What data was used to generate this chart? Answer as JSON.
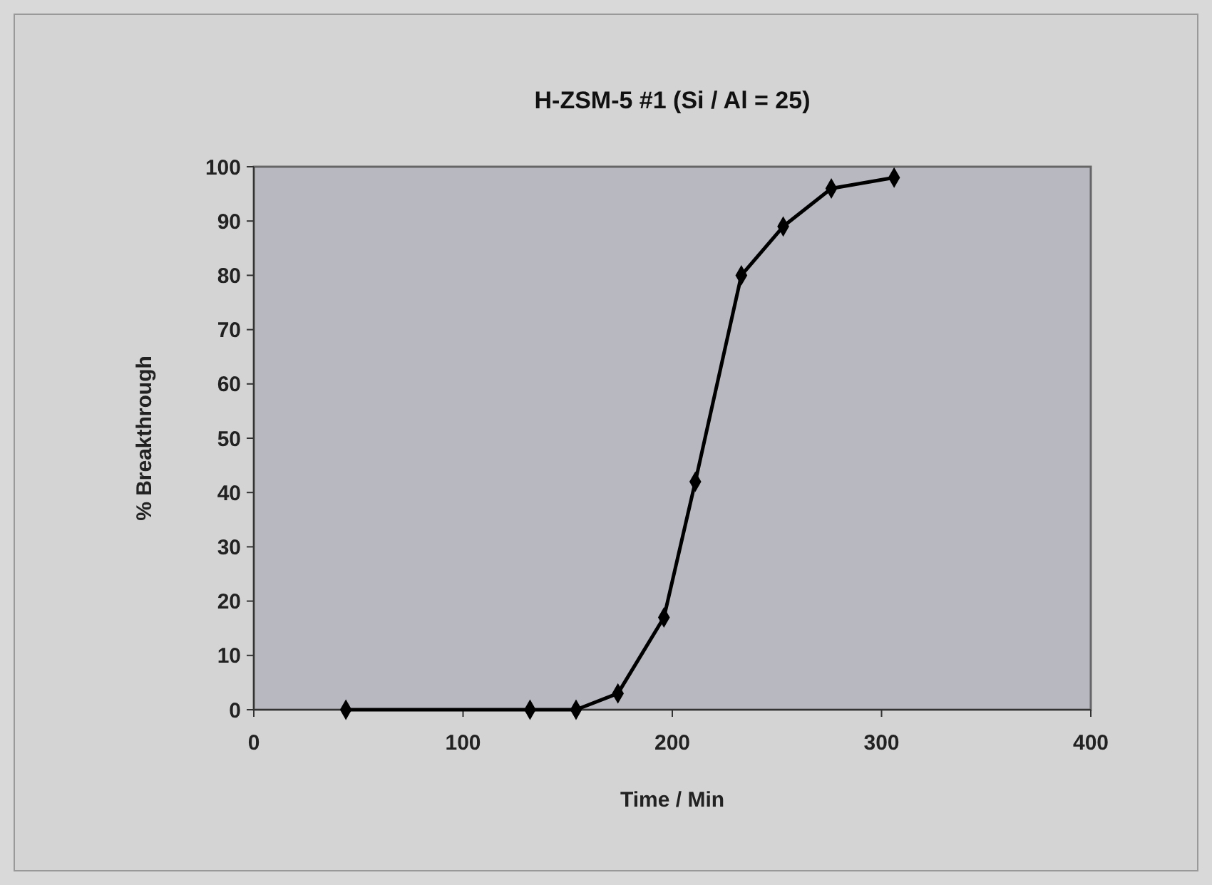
{
  "chart_data": {
    "type": "line",
    "title": "H-ZSM-5 #1 (Si / Al = 25)",
    "xlabel": "Time / Min",
    "ylabel": "% Breakthrough",
    "x": [
      44,
      132,
      154,
      174,
      196,
      211,
      233,
      253,
      276,
      306
    ],
    "series": [
      {
        "color": "#000000",
        "values": [
          0,
          0,
          0,
          3,
          17,
          42,
          80,
          89,
          96,
          98
        ]
      }
    ],
    "xlim": [
      0,
      400
    ],
    "xticks": [
      0,
      100,
      200,
      300,
      400
    ],
    "ylim": [
      0,
      100
    ],
    "yticks": [
      0,
      10,
      20,
      30,
      40,
      50,
      60,
      70,
      80,
      90,
      100
    ],
    "grid": false,
    "marker": "diamond",
    "line_style": "solid"
  }
}
